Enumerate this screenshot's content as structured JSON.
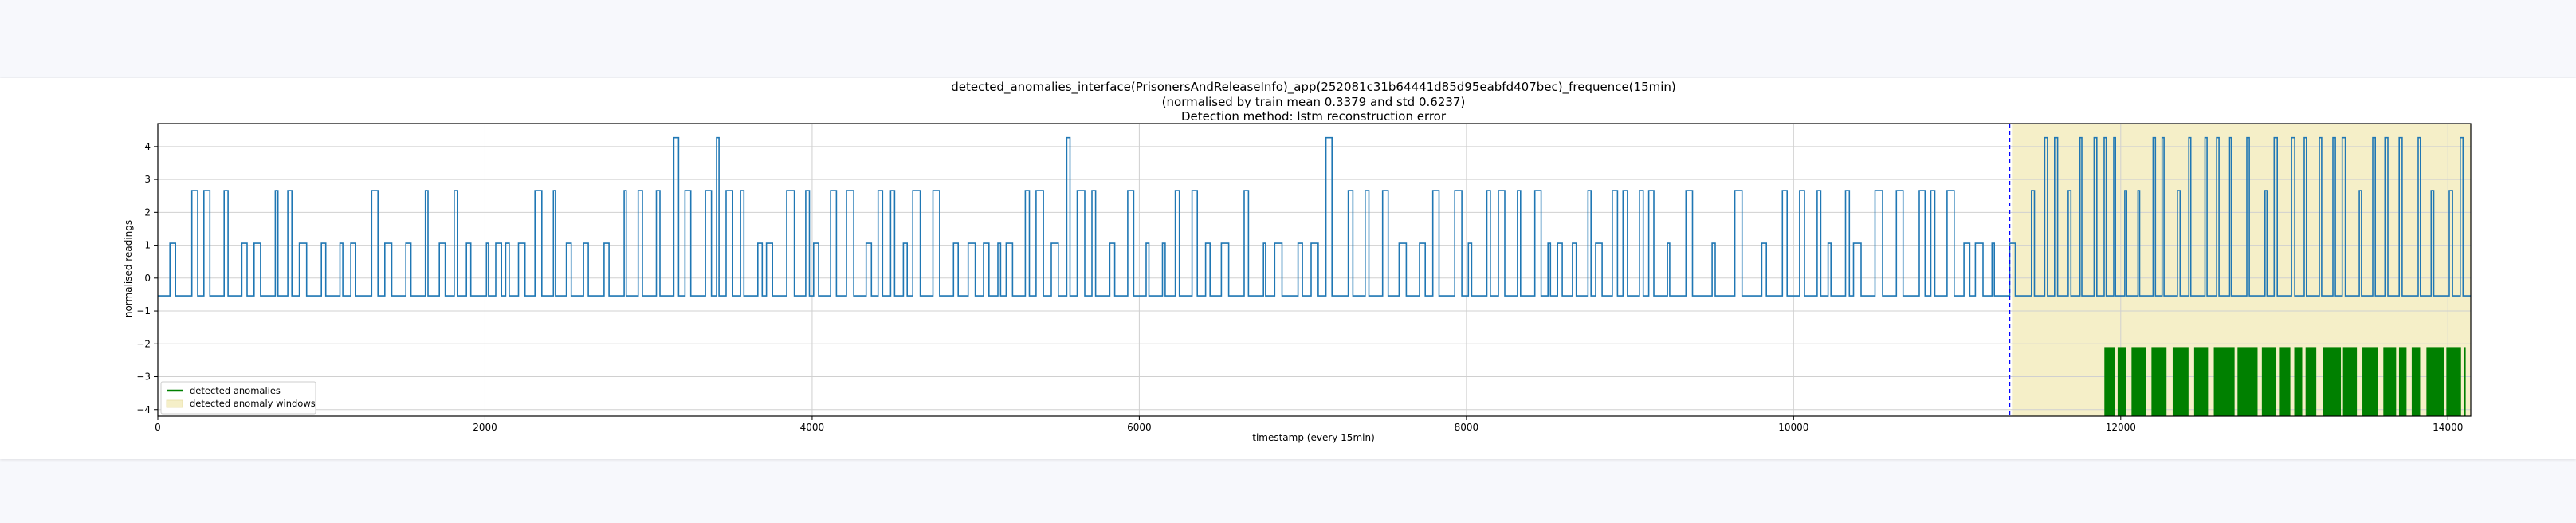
{
  "chart_data": {
    "type": "line",
    "title": [
      "detected_anomalies_interface(PrisonersAndReleaseInfo)_app(252081c31b64441d85d95eabfd407bec)_frequence(15min)",
      "(normalised by train mean 0.3379 and std 0.6237)",
      "Detection method: lstm reconstruction error"
    ],
    "xlabel": "timestamp (every 15min)",
    "ylabel": "normalised readings",
    "xlim": [
      0,
      14140
    ],
    "ylim": [
      -4.2,
      4.7
    ],
    "xticks": [
      0,
      2000,
      4000,
      6000,
      8000,
      10000,
      12000,
      14000
    ],
    "yticks": [
      -4,
      -3,
      -2,
      -1,
      0,
      1,
      2,
      3,
      4
    ],
    "grid": true,
    "series": [
      {
        "name": "",
        "color": "#1f77b4",
        "baseline": -0.54,
        "levels": [
          1.06,
          2.66,
          4.27
        ],
        "description_levels_note": ""
      }
    ],
    "vertical_line": {
      "x": 11320,
      "color": "#0000ff",
      "style": "dashed"
    },
    "anomaly_window": {
      "x_start": 11340,
      "x_end": 14140,
      "color": "#f5efc8"
    },
    "anomaly_markers": {
      "x_start": 11900,
      "x_end": 14100,
      "y_bottom": -4.2,
      "y_top": -2.1,
      "color": "#008000"
    },
    "legend": {
      "position": "lower-left",
      "entries": [
        {
          "label": "detected anomalies",
          "color": "#008000",
          "kind": "line"
        },
        {
          "label": "detected anomaly windows",
          "color": "#f5efc8",
          "kind": "patch"
        }
      ]
    }
  }
}
